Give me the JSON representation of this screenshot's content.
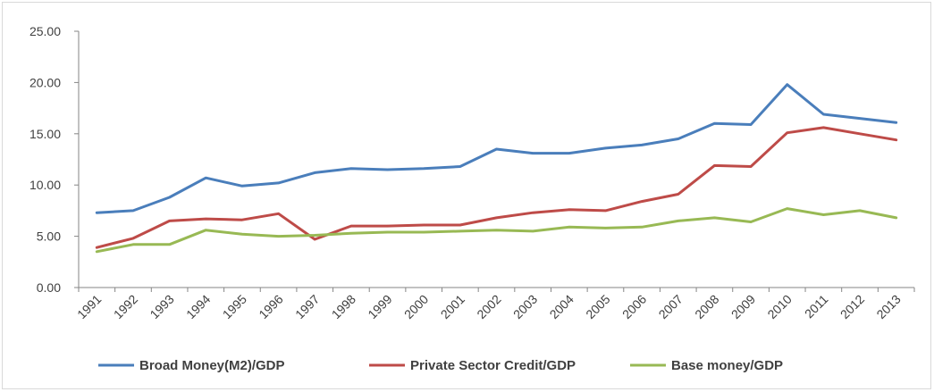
{
  "chart_data": {
    "type": "line",
    "title": "",
    "xlabel": "",
    "ylabel": "",
    "x": [
      "1991",
      "1992",
      "1993",
      "1994",
      "1995",
      "1996",
      "1997",
      "1998",
      "1999",
      "2000",
      "2001",
      "2002",
      "2003",
      "2004",
      "2005",
      "2006",
      "2007",
      "2008",
      "2009",
      "2010",
      "2011",
      "2012",
      "2013"
    ],
    "ylim": [
      0,
      25
    ],
    "yticks": [
      "0.00",
      "5.00",
      "10.00",
      "15.00",
      "20.00",
      "25.00"
    ],
    "grid": false,
    "legend": "bottom",
    "series": [
      {
        "name": "Broad Money(M2)/GDP",
        "color": "#4a7ebb",
        "values": [
          7.3,
          7.5,
          8.8,
          10.7,
          9.9,
          10.2,
          11.2,
          11.6,
          11.5,
          11.6,
          11.8,
          13.5,
          13.1,
          13.1,
          13.6,
          13.9,
          14.5,
          16.0,
          15.9,
          19.8,
          16.9,
          16.5,
          16.1
        ]
      },
      {
        "name": "Private Sector Credit/GDP",
        "color": "#be4b48",
        "values": [
          3.9,
          4.8,
          6.5,
          6.7,
          6.6,
          7.2,
          4.7,
          6.0,
          6.0,
          6.1,
          6.1,
          6.8,
          7.3,
          7.6,
          7.5,
          8.4,
          9.1,
          11.9,
          11.8,
          15.1,
          15.6,
          15.0,
          14.4
        ]
      },
      {
        "name": "Base money/GDP",
        "color": "#98b954",
        "values": [
          3.5,
          4.2,
          4.2,
          5.6,
          5.2,
          5.0,
          5.1,
          5.3,
          5.4,
          5.4,
          5.5,
          5.6,
          5.5,
          5.9,
          5.8,
          5.9,
          6.5,
          6.8,
          6.4,
          7.7,
          7.1,
          7.5,
          6.8
        ]
      }
    ]
  }
}
